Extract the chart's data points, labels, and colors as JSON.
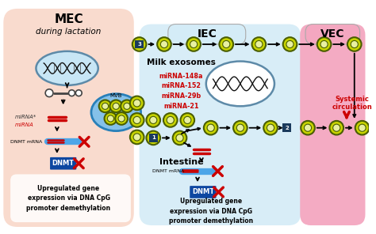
{
  "bg_color": "#ffffff",
  "mec_bg": "#f9d9cc",
  "iec_bg": "#d4ecf7",
  "vec_bg": "#f4a7c0",
  "mec_label": "MEC",
  "iec_label": "IEC",
  "vec_label": "VEC",
  "mec_sublabel": "during lactation",
  "exosome_label": "Milk exosomes",
  "mirnas": [
    "miRNA-148a",
    "miRNA-152",
    "miRNA-29b",
    "miRNA-21"
  ],
  "intestine_label": "Intestine",
  "dnmt_label": "DNMT",
  "dnmt_mrna_label": "DNMT mRNA",
  "mvb_label": "MVB",
  "upregulated_text": "Upregulated gene\nexpression via DNA CpG\npromoter demethylation",
  "systemic_label": "Systemic\ncirculation",
  "exo_outer": "#c8d400",
  "exo_edge": "#4a5e00",
  "exo_inner": "#e8f0a0",
  "cell_blue_fill": "#c8e6f5",
  "cell_blue_edge": "#5d8aa8",
  "mvb_fill": "#85c1e9",
  "mvb_edge": "#2980b9",
  "dnmt_box_color": "#0d47a1",
  "red_color": "#cc0000",
  "num_box_color": "#1a3a5c",
  "white": "#ffffff",
  "black": "#000000"
}
